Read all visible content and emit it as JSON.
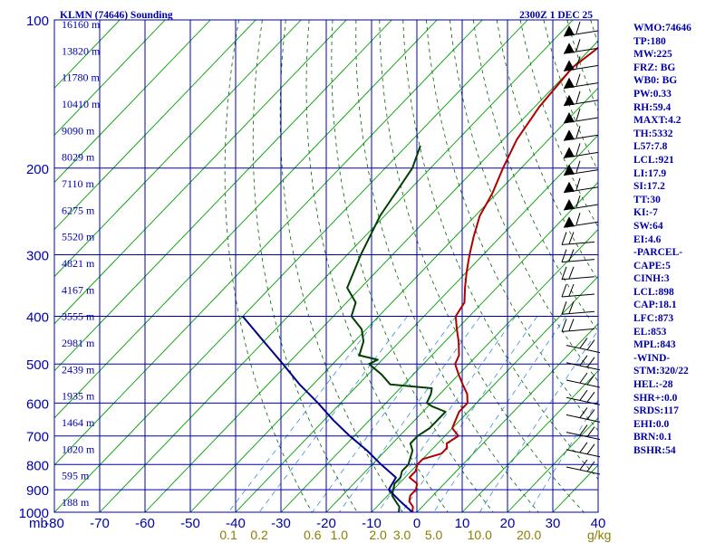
{
  "chart_data": {
    "type": "line",
    "title": "KLMN (74646) Sounding",
    "datetime": "2300Z  1 DEC 25",
    "temp_tick_labels": [
      "-80",
      "-70",
      "-60",
      "-50",
      "-40",
      "-30",
      "-20",
      "-10",
      "0",
      "10",
      "20",
      "30",
      "40"
    ],
    "temp_axis_prefix": "mb",
    "pressure_tick_labels": [
      "100",
      "200",
      "300",
      "400",
      "500",
      "600",
      "700",
      "800",
      "900",
      "1000"
    ],
    "mixing_ratio_labels": [
      "0.1",
      "0.2",
      "0.6",
      "1.0",
      "2.0",
      "3.0",
      "5.0",
      "10.0",
      "20.0"
    ],
    "mixing_ratio_unit": "g/kg",
    "height_labels": [
      "16160 m",
      "13820 m",
      "11780 m",
      "10410 m",
      "9090 m",
      "8029 m",
      "7110 m",
      "6275 m",
      "5520 m",
      "4821 m",
      "4167 m",
      "3555 m",
      "2981 m",
      "2439 m",
      "1935 m",
      "1464 m",
      "1020 m",
      "595 m",
      "188 m"
    ],
    "temp_range": [
      -80,
      40
    ],
    "pressure_range": [
      100,
      1000
    ],
    "series": [
      {
        "color": "#b00000",
        "points": [
          [
            1000,
            -1
          ],
          [
            975,
            -2
          ],
          [
            950,
            -4
          ],
          [
            925,
            -5
          ],
          [
            900,
            -5
          ],
          [
            875,
            -6
          ],
          [
            850,
            -9
          ],
          [
            825,
            -9
          ],
          [
            800,
            -10
          ],
          [
            780,
            -10
          ],
          [
            760,
            -7
          ],
          [
            740,
            -7
          ],
          [
            725,
            -8
          ],
          [
            700,
            -7
          ],
          [
            675,
            -10
          ],
          [
            650,
            -11
          ],
          [
            625,
            -12
          ],
          [
            600,
            -12
          ],
          [
            575,
            -14
          ],
          [
            550,
            -17
          ],
          [
            525,
            -20
          ],
          [
            500,
            -23
          ],
          [
            480,
            -24
          ],
          [
            450,
            -27
          ],
          [
            425,
            -30
          ],
          [
            400,
            -33
          ],
          [
            375,
            -34
          ],
          [
            350,
            -37
          ],
          [
            325,
            -40
          ],
          [
            300,
            -43
          ],
          [
            275,
            -46
          ],
          [
            250,
            -49
          ],
          [
            225,
            -51
          ],
          [
            200,
            -54
          ],
          [
            175,
            -57
          ],
          [
            150,
            -59
          ],
          [
            125,
            -60
          ],
          [
            110,
            -58
          ],
          [
            105,
            -62
          ],
          [
            100,
            -63
          ]
        ]
      },
      {
        "color": "#004000",
        "points": [
          [
            1000,
            -4
          ],
          [
            975,
            -5
          ],
          [
            950,
            -7
          ],
          [
            925,
            -9
          ],
          [
            900,
            -10
          ],
          [
            875,
            -11
          ],
          [
            860,
            -11
          ],
          [
            850,
            -11
          ],
          [
            825,
            -12
          ],
          [
            800,
            -12
          ],
          [
            775,
            -13
          ],
          [
            750,
            -14
          ],
          [
            725,
            -16
          ],
          [
            700,
            -16
          ],
          [
            675,
            -15
          ],
          [
            650,
            -15
          ],
          [
            625,
            -15
          ],
          [
            610,
            -19
          ],
          [
            600,
            -21
          ],
          [
            575,
            -22
          ],
          [
            560,
            -23
          ],
          [
            550,
            -33
          ],
          [
            525,
            -37
          ],
          [
            500,
            -42
          ],
          [
            490,
            -41
          ],
          [
            480,
            -46
          ],
          [
            450,
            -48
          ],
          [
            425,
            -51
          ],
          [
            400,
            -56
          ],
          [
            375,
            -58
          ],
          [
            350,
            -63
          ],
          [
            300,
            -67
          ],
          [
            250,
            -71
          ],
          [
            200,
            -74
          ],
          [
            180,
            -77
          ]
        ]
      },
      {
        "color": "#00008b",
        "points": [
          [
            1000,
            -1
          ],
          [
            950,
            -6
          ],
          [
            900,
            -11
          ],
          [
            850,
            -12
          ],
          [
            800,
            -18
          ],
          [
            750,
            -24
          ],
          [
            700,
            -31
          ],
          [
            650,
            -38
          ],
          [
            600,
            -45
          ],
          [
            550,
            -53
          ],
          [
            500,
            -61
          ],
          [
            450,
            -70
          ],
          [
            400,
            -80
          ]
        ]
      }
    ],
    "wind_stations": [
      "hi",
      "hi",
      "hi",
      "hi",
      "hi",
      "hi",
      "hi",
      "hi",
      "hi",
      "hi",
      "hi",
      "hi",
      "mid",
      "mid",
      "mid",
      "mid",
      "mid",
      "mid",
      "lo",
      "lo",
      "lo",
      "lo",
      "lo",
      "lo",
      "lo",
      "lo"
    ]
  },
  "side_panel": [
    "WMO:74646",
    "TP:180",
    "MW:225",
    "FRZ: BG",
    "WB0: BG",
    "PW:0.33",
    "RH:59.4",
    "MAXT:4.2",
    "TH:5332",
    "L57:7.8",
    "LCL:921",
    "LI:17.9",
    "SI:17.2",
    "TT:30",
    "KI:-7",
    "SW:64",
    "EI:4.6",
    "-PARCEL-",
    "CAPE:5",
    "CINH:3",
    "LCL:898",
    "CAP:18.1",
    "LFC:873",
    "EL:853",
    "MPL:843",
    "-WIND-",
    "STM:320/22",
    "HEL:-28",
    "SHR+:0.0",
    "SRDS:117",
    "EHI:0.0",
    "BRN:0.1",
    "BSHR:54"
  ]
}
